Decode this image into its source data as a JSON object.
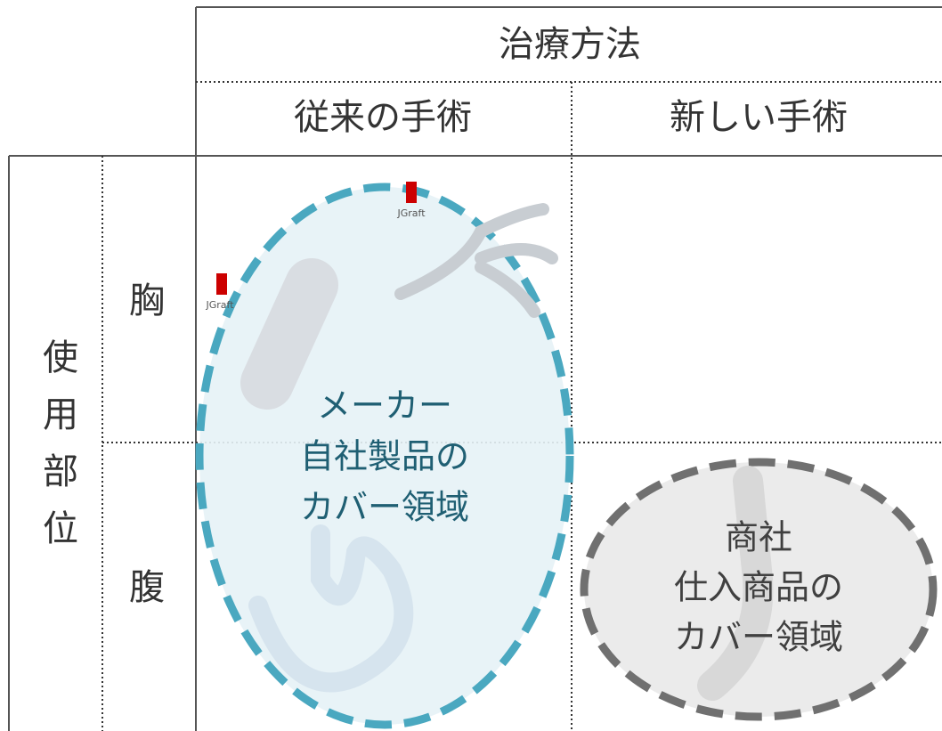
{
  "header": {
    "title": "治療方法",
    "columns": [
      "従来の手術",
      "新しい手術"
    ]
  },
  "rows": {
    "title": "使用部位",
    "labels": [
      "胸",
      "腹"
    ]
  },
  "regions": [
    {
      "lines": [
        "メーカー",
        "自社製品の",
        "カバー領域"
      ]
    },
    {
      "lines": [
        "商社",
        "仕入商品の",
        "カバー領域"
      ]
    }
  ],
  "logos": [
    "JGraft",
    "JGraft"
  ]
}
